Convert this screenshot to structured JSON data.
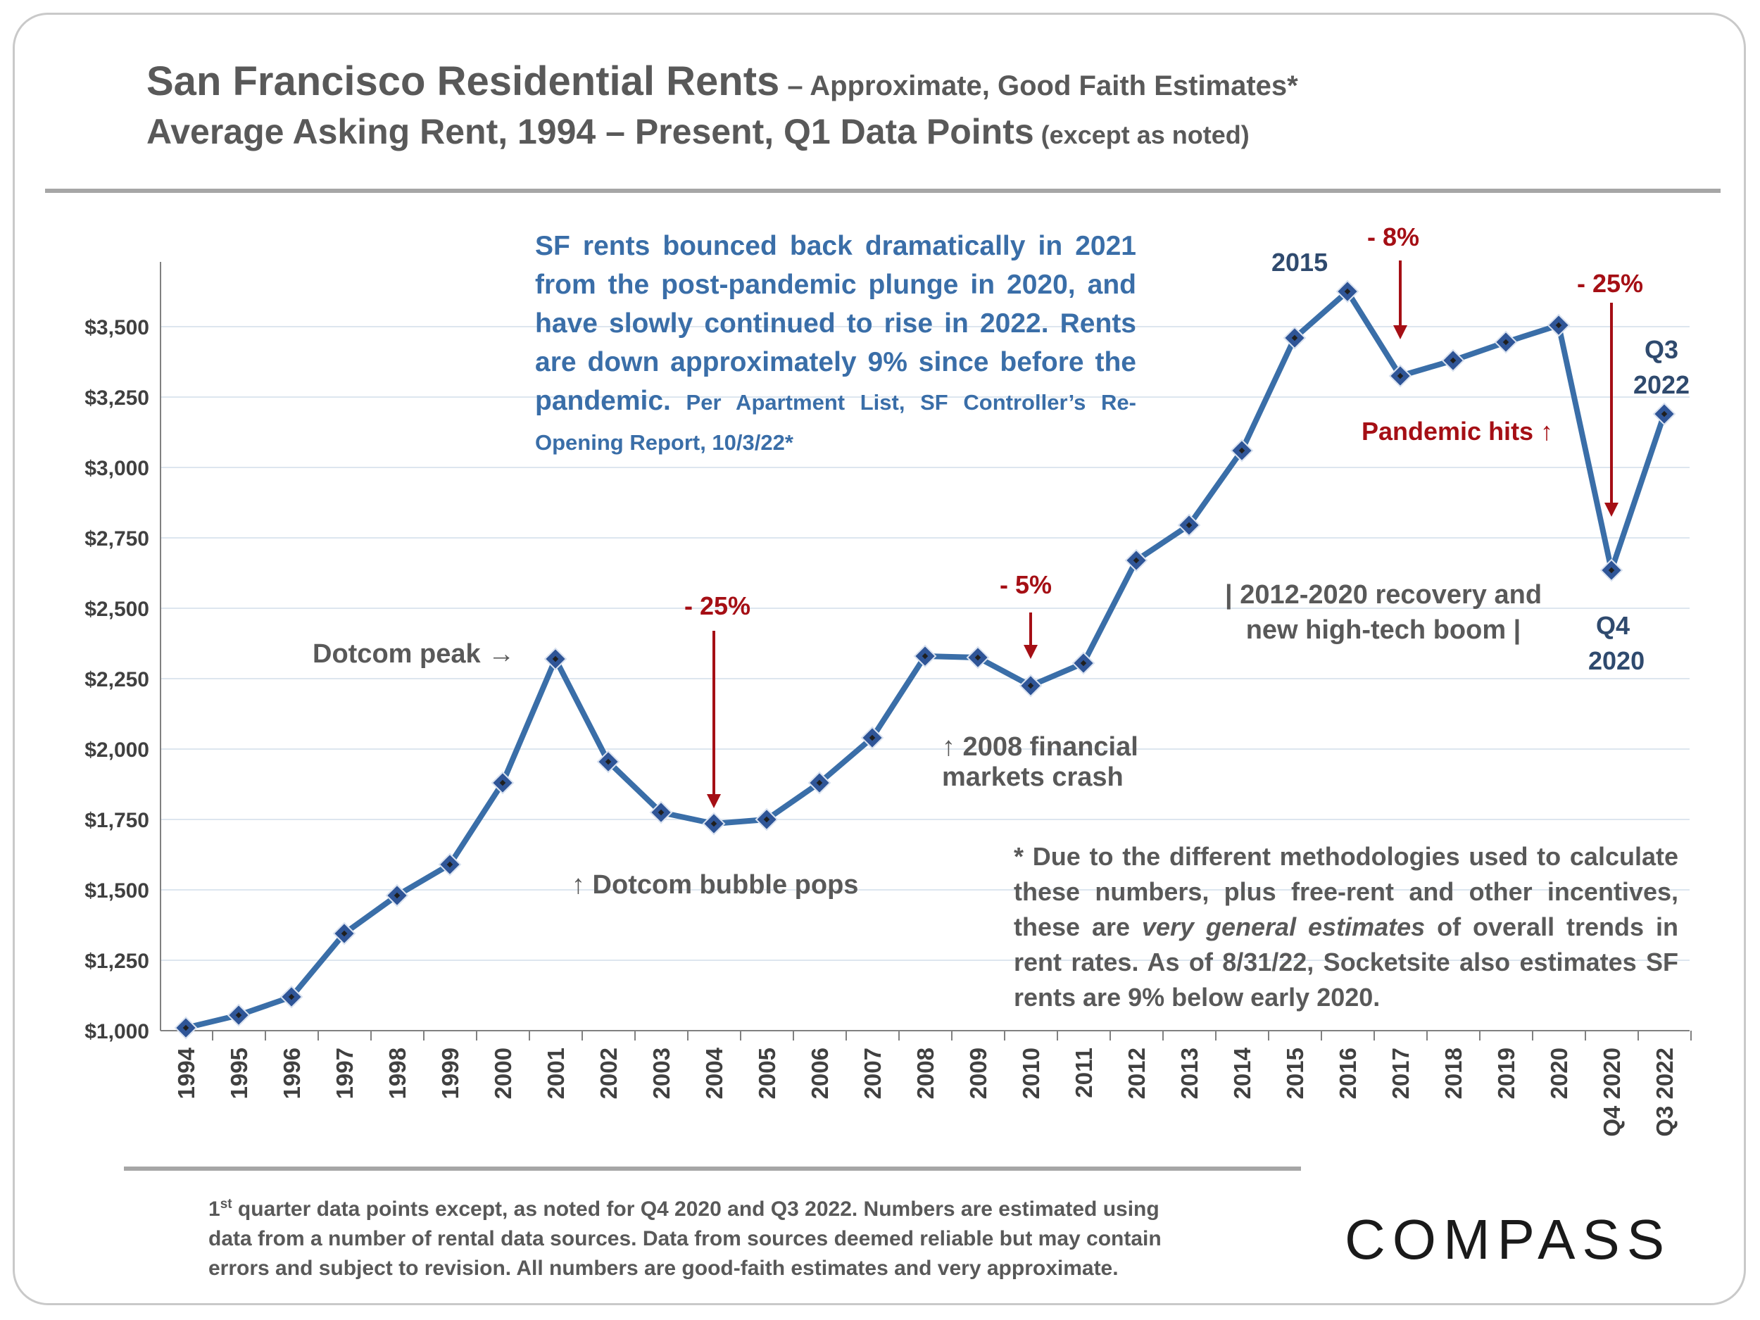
{
  "header": {
    "title_main": "San Francisco Residential Rents",
    "title_suffix": " – Approximate, Good Faith Estimates*",
    "subtitle_main": "Average Asking Rent, 1994 – Present, Q1 Data Points",
    "subtitle_suffix": " (except as noted)"
  },
  "summary_note": {
    "text": "SF rents bounced back dramatically in 2021 from the post-pandemic plunge in 2020, and have slowly continued to rise in 2022. Rents are down approximately 9% since before the pandemic.",
    "source": " Per Apartment List, SF Controller’s Re-Opening Report, 10/3/22*"
  },
  "annotations": {
    "dotcom_peak": "Dotcom peak →",
    "drop_2004": "- 25%",
    "bubble_pops": "↑ Dotcom bubble pops",
    "drop_2010": "- 5%",
    "financial_crash_line1": "↑ 2008 financial",
    "financial_crash_line2": "markets crash",
    "label_2015": "2015",
    "drop_2017": "- 8%",
    "drop_2020": "- 25%",
    "recovery_line1": "| 2012-2020 recovery and",
    "recovery_line2": "new high-tech boom |",
    "pandemic_hits": "Pandemic hits ↑",
    "q4_line1": "Q4",
    "q4_line2": "2020",
    "q3_line1": "Q3",
    "q3_line2": "2022"
  },
  "methodology_note": {
    "part1": "* Due to the different methodologies used to calculate these numbers, plus free-rent and other incentives, these are ",
    "emphasis": "very general estimates",
    "part2": " of overall trends in rent rates. As of 8/31/22, Socketsite also estimates SF rents are 9% below early 2020."
  },
  "footer": {
    "source_ordinal": "1",
    "source_sup": "st",
    "source_text": " quarter data points except, as noted for Q4 2020 and Q3 2022. Numbers are estimated using data from a number of rental data sources. Data from sources deemed reliable but may contain errors and subject to revision. All numbers are good-faith estimates and very approximate.",
    "logo": "COMPASS"
  },
  "colors": {
    "line": "#3a6ea8",
    "marker": "#2f5597",
    "marker_center": "#1f1f1f",
    "grid": "#dde6ef",
    "axis": "#808080",
    "tick_text": "#404040",
    "red_arrow": "#a50f15"
  },
  "chart_data": {
    "type": "line",
    "title": "San Francisco Residential Rents – Approximate, Good Faith Estimates*",
    "subtitle": "Average Asking Rent, 1994 – Present, Q1 Data Points (except as noted)",
    "categories": [
      "1994",
      "1995",
      "1996",
      "1997",
      "1998",
      "1999",
      "2000",
      "2001",
      "2002",
      "2003",
      "2004",
      "2005",
      "2006",
      "2007",
      "2008",
      "2009",
      "2010",
      "2011",
      "2012",
      "2013",
      "2014",
      "2015",
      "2016",
      "2017",
      "2018",
      "2019",
      "2020",
      "Q4 2020",
      "Q3 2022"
    ],
    "values": [
      1010,
      1055,
      1120,
      1345,
      1480,
      1590,
      1880,
      2320,
      1955,
      1775,
      1735,
      1750,
      1880,
      2040,
      2330,
      2325,
      2225,
      2305,
      2670,
      2795,
      3060,
      3460,
      3625,
      3325,
      3380,
      3445,
      3505,
      2635,
      3190
    ],
    "ylim": [
      1000,
      3700
    ],
    "yticks": [
      1000,
      1250,
      1500,
      1750,
      2000,
      2250,
      2500,
      2750,
      3000,
      3250,
      3500
    ],
    "ytick_labels": [
      "$1,000",
      "$1,250",
      "$1,500",
      "$1,750",
      "$2,000",
      "$2,250",
      "$2,500",
      "$2,750",
      "$3,000",
      "$3,250",
      "$3,500"
    ],
    "grid": true,
    "legend": "none"
  }
}
